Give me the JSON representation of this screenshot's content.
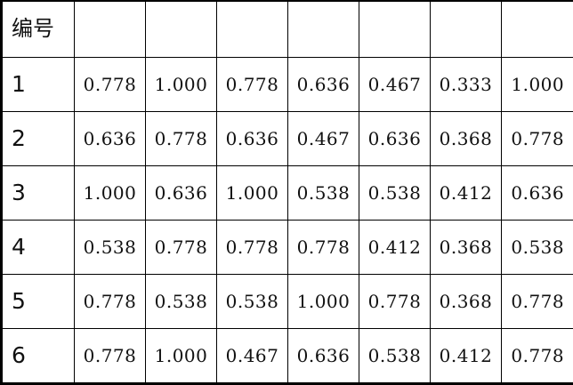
{
  "table": {
    "header_label": "编号",
    "header_cells": [
      "",
      "",
      "",
      "",
      "",
      "",
      ""
    ],
    "rows": [
      {
        "id": "1",
        "values": [
          "0.778",
          "1.000",
          "0.778",
          "0.636",
          "0.467",
          "0.333",
          "1.000"
        ]
      },
      {
        "id": "2",
        "values": [
          "0.636",
          "0.778",
          "0.636",
          "0.467",
          "0.636",
          "0.368",
          "0.778"
        ]
      },
      {
        "id": "3",
        "values": [
          "1.000",
          "0.636",
          "1.000",
          "0.538",
          "0.538",
          "0.412",
          "0.636"
        ]
      },
      {
        "id": "4",
        "values": [
          "0.538",
          "0.778",
          "0.778",
          "0.778",
          "0.412",
          "0.368",
          "0.538"
        ]
      },
      {
        "id": "5",
        "values": [
          "0.778",
          "0.538",
          "0.538",
          "1.000",
          "0.778",
          "0.368",
          "0.778"
        ]
      },
      {
        "id": "6",
        "values": [
          "0.778",
          "1.000",
          "0.467",
          "0.636",
          "0.538",
          "0.412",
          "0.778"
        ]
      }
    ]
  }
}
